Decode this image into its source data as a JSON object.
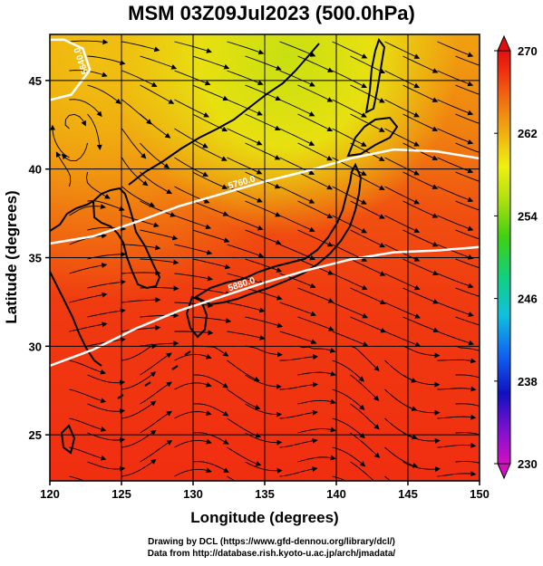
{
  "title": "MSM 03Z09Jul2023 (500.0hPa)",
  "map": {
    "xlabel": "Longitude (degrees)",
    "ylabel": "Latitude  (degrees)",
    "xlim": [
      120,
      150
    ],
    "ylim": [
      22.4,
      47.6
    ],
    "x_ticks": [
      120,
      125,
      130,
      135,
      140,
      145,
      150
    ],
    "y_ticks": [
      25,
      30,
      35,
      40,
      45
    ],
    "grid": true,
    "field": "temperature shading with wind streamlines",
    "contours": [
      {
        "label": "5880.0",
        "points": [
          [
            120,
            28.9
          ],
          [
            123,
            29.8
          ],
          [
            126,
            31.0
          ],
          [
            129,
            32.0
          ],
          [
            132,
            32.8
          ],
          [
            135,
            33.6
          ],
          [
            138,
            34.3
          ],
          [
            141,
            34.9
          ],
          [
            144,
            35.3
          ],
          [
            147,
            35.4
          ],
          [
            150,
            35.6
          ]
        ]
      },
      {
        "label": "5760.0",
        "points": [
          [
            120,
            35.8
          ],
          [
            123,
            36.2
          ],
          [
            126,
            37.0
          ],
          [
            129,
            37.9
          ],
          [
            132,
            38.6
          ],
          [
            135,
            39.3
          ],
          [
            138,
            39.9
          ],
          [
            141,
            40.6
          ],
          [
            144,
            41.1
          ],
          [
            147,
            41.0
          ],
          [
            150,
            40.6
          ]
        ]
      },
      {
        "label": "5640.0",
        "points": [
          [
            120,
            43.9
          ],
          [
            121.5,
            44.2
          ],
          [
            122.8,
            45.6
          ],
          [
            122.3,
            46.8
          ],
          [
            121.0,
            47.3
          ],
          [
            120,
            47.3
          ]
        ]
      }
    ]
  },
  "colorbar": {
    "ticks": [
      "270",
      "262",
      "254",
      "246",
      "238",
      "230"
    ],
    "min": 230,
    "max": 270,
    "colors": [
      "#d010c0",
      "#8010d0",
      "#1010c0",
      "#1060f0",
      "#10c0e0",
      "#10d080",
      "#40d010",
      "#b0e010",
      "#f0f010",
      "#f0b010",
      "#f07010",
      "#f03010",
      "#e01010"
    ]
  },
  "footer": {
    "line1": "Drawing by DCL (https://www.gfd-dennou.org/library/dcl/)",
    "line2": "Data from http://database.rish.kyoto-u.ac.jp/arch/jmadata/"
  }
}
